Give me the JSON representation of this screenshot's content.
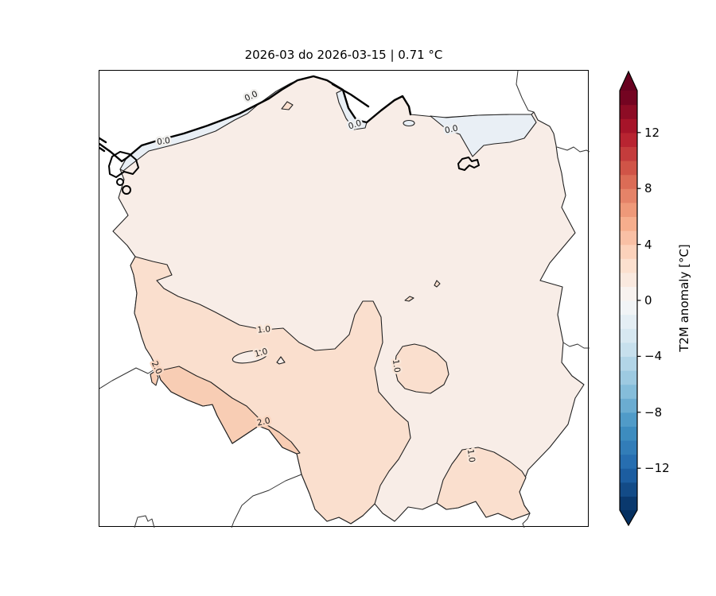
{
  "title": "2026-03 do 2026-03-15 | 0.71 °C",
  "colors": {
    "background": "#ffffff",
    "frame": "#000000",
    "zone_blue": "#e9eff5",
    "zone_beige": "#f8ede7",
    "zone_peach": "#fadfce",
    "zone_peach_dark": "#f8cdb4",
    "line": "#1a1a1a"
  },
  "colorbar": {
    "label": "T2M anomaly [°C]",
    "cmap": "RdBu_r",
    "cmap_anchors": [
      "#053061",
      "#2166ac",
      "#4393c3",
      "#92c5de",
      "#d1e5f0",
      "#f7f7f7",
      "#fddbc7",
      "#f4a582",
      "#d6604d",
      "#b2182b",
      "#67001f"
    ],
    "level_min": -15,
    "level_max": 15,
    "level_step": 1,
    "extend": "both",
    "ticks": [
      {
        "label": "12",
        "value": 12
      },
      {
        "label": "8",
        "value": 8
      },
      {
        "label": "4",
        "value": 4
      },
      {
        "label": "0",
        "value": 0
      },
      {
        "label": "−4",
        "value": -4
      },
      {
        "label": "−8",
        "value": -8
      },
      {
        "label": "−12",
        "value": -12
      }
    ]
  },
  "map": {
    "region": "Poland",
    "zones": [
      {
        "range": "-1 to 0 °C",
        "color": "#e9eff5"
      },
      {
        "range": "0 to 1 °C",
        "color": "#f8ede7"
      },
      {
        "range": "1 to 2 °C",
        "color": "#fadfce"
      },
      {
        "range": "2 to 3 °C",
        "color": "#f8cdb4"
      }
    ],
    "contour_labels": [
      {
        "value": "0.0"
      },
      {
        "value": "0.0"
      },
      {
        "value": "0.0"
      },
      {
        "value": "0.0"
      },
      {
        "value": "1.0"
      },
      {
        "value": "1.0"
      },
      {
        "value": "1.0"
      },
      {
        "value": "1.0"
      },
      {
        "value": "2.0"
      },
      {
        "value": "2.0"
      }
    ]
  }
}
